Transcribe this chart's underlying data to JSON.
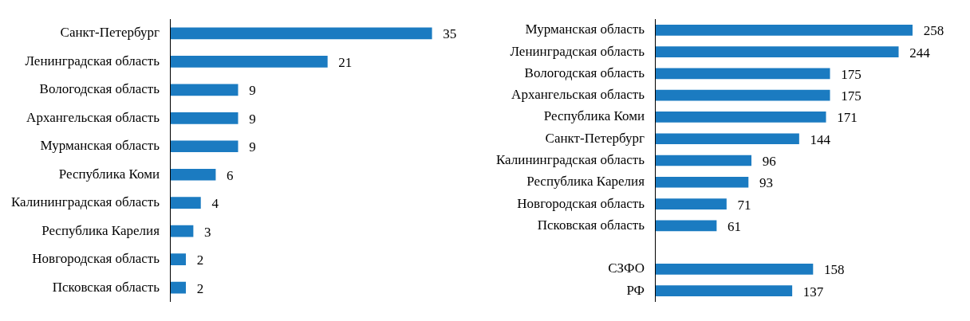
{
  "chart_data": [
    {
      "type": "bar",
      "orientation": "horizontal",
      "categories": [
        "Санкт-Петербург",
        "Ленинградская область",
        "Вологодская область",
        "Архангельская область",
        "Мурманская область",
        "Республика Коми",
        "Калининградская область",
        "Республика Карелия",
        "Новгородская область",
        "Псковская область"
      ],
      "values": [
        35,
        21,
        9,
        9,
        9,
        6,
        4,
        3,
        2,
        2
      ],
      "color": "#1b7bc1",
      "data_labels": true,
      "tick_labels": "y"
    },
    {
      "type": "bar",
      "orientation": "horizontal",
      "categories": [
        "Мурманская область",
        "Ленинградская область",
        "Вологодская область",
        "Архангельская область",
        "Республика Коми",
        "Санкт-Петербург",
        "Калининградская область",
        "Республика Карелия",
        "Новгородская область",
        "Псковская область",
        null,
        "СЗФО",
        "РФ"
      ],
      "values": [
        258,
        244,
        175,
        175,
        171,
        144,
        96,
        93,
        71,
        61,
        null,
        158,
        137
      ],
      "color": "#1b7bc1",
      "data_labels": true,
      "tick_labels": "y"
    }
  ]
}
